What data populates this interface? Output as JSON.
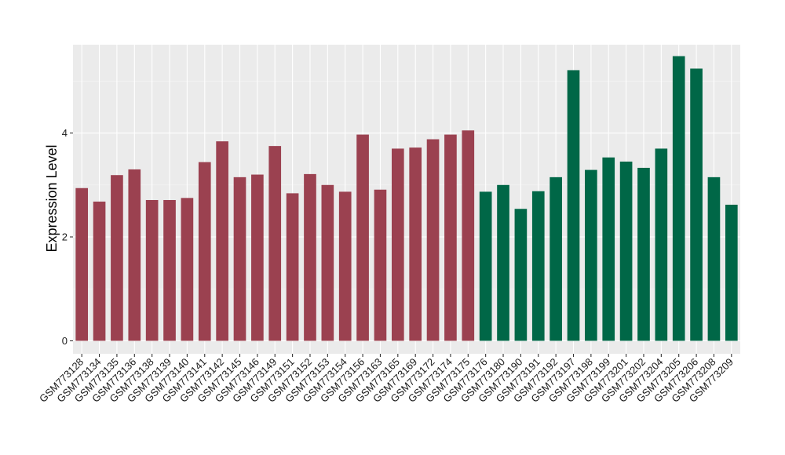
{
  "chart_data": {
    "type": "bar",
    "ylabel": "Expression Level",
    "xlabel": "",
    "ylim": [
      -0.25,
      5.7
    ],
    "yticks": [
      0,
      2,
      4
    ],
    "grid": true,
    "colors": {
      "group_a": "#9b4150",
      "group_b": "#006747",
      "panel_bg": "#ebebeb",
      "grid_major": "#ffffff"
    },
    "categories": [
      "GSM773128",
      "GSM773134",
      "GSM773135",
      "GSM773136",
      "GSM773138",
      "GSM773139",
      "GSM773140",
      "GSM773141",
      "GSM773142",
      "GSM773145",
      "GSM773146",
      "GSM773149",
      "GSM773151",
      "GSM773152",
      "GSM773153",
      "GSM773154",
      "GSM773156",
      "GSM773163",
      "GSM773165",
      "GSM773169",
      "GSM773172",
      "GSM773174",
      "GSM773175",
      "GSM773176",
      "GSM773180",
      "GSM773190",
      "GSM773191",
      "GSM773192",
      "GSM773197",
      "GSM773198",
      "GSM773199",
      "GSM773201",
      "GSM773202",
      "GSM773204",
      "GSM773205",
      "GSM773206",
      "GSM773208",
      "GSM773209"
    ],
    "values": [
      2.94,
      2.68,
      3.19,
      3.3,
      2.71,
      2.71,
      2.75,
      3.44,
      3.84,
      3.15,
      3.2,
      3.75,
      2.84,
      3.21,
      3.0,
      2.87,
      3.97,
      2.91,
      3.7,
      3.72,
      3.88,
      3.97,
      4.05,
      2.87,
      3.0,
      2.54,
      2.88,
      3.15,
      5.21,
      3.29,
      3.53,
      3.45,
      3.33,
      3.7,
      5.48,
      5.24,
      3.15,
      2.62
    ],
    "groups": [
      "a",
      "a",
      "a",
      "a",
      "a",
      "a",
      "a",
      "a",
      "a",
      "a",
      "a",
      "a",
      "a",
      "a",
      "a",
      "a",
      "a",
      "a",
      "a",
      "a",
      "a",
      "a",
      "a",
      "b",
      "b",
      "b",
      "b",
      "b",
      "b",
      "b",
      "b",
      "b",
      "b",
      "b",
      "b",
      "b",
      "b",
      "b"
    ]
  }
}
